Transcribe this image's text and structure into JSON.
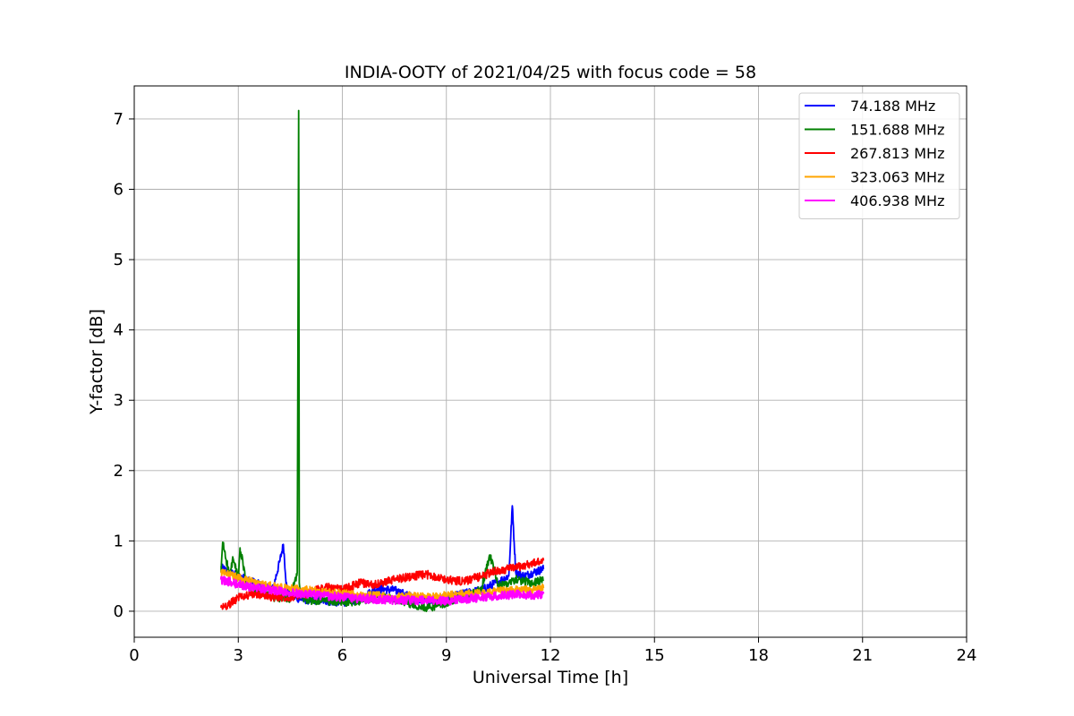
{
  "chart_data": {
    "type": "line",
    "title": "INDIA-OOTY of 2021/04/25 with focus code = 58",
    "xlabel": "Universal Time [h]",
    "ylabel": "Y-factor [dB]",
    "xlim": [
      0,
      24
    ],
    "ylim": [
      -0.37,
      7.47
    ],
    "xticks": [
      0,
      3,
      6,
      9,
      12,
      15,
      18,
      21,
      24
    ],
    "yticks": [
      0,
      1,
      2,
      3,
      4,
      5,
      6,
      7
    ],
    "grid": true,
    "legend_position": "top-right",
    "series": [
      {
        "name": " 74.188 MHz",
        "color": "#0000ff",
        "x": [
          2.5,
          2.75,
          3.0,
          3.25,
          3.5,
          3.75,
          4.0,
          4.2,
          4.3,
          4.4,
          4.5,
          4.75,
          5.0,
          5.5,
          6.0,
          6.5,
          7.0,
          7.5,
          8.0,
          8.5,
          9.0,
          9.5,
          10.0,
          10.5,
          10.8,
          10.9,
          11.0,
          11.25,
          11.5,
          11.8
        ],
        "values": [
          0.62,
          0.55,
          0.5,
          0.45,
          0.4,
          0.35,
          0.32,
          0.72,
          0.95,
          0.3,
          0.22,
          0.18,
          0.16,
          0.15,
          0.12,
          0.18,
          0.32,
          0.3,
          0.2,
          0.15,
          0.18,
          0.25,
          0.3,
          0.42,
          0.5,
          1.5,
          0.55,
          0.5,
          0.55,
          0.6
        ]
      },
      {
        "name": "151.688 MHz",
        "color": "#008000",
        "x": [
          2.5,
          2.55,
          2.75,
          2.85,
          3.0,
          3.05,
          3.25,
          3.5,
          4.0,
          4.5,
          4.7,
          4.74,
          4.76,
          4.8,
          5.0,
          5.5,
          6.0,
          6.5,
          7.0,
          7.5,
          8.0,
          8.5,
          9.0,
          9.5,
          10.0,
          10.25,
          10.5,
          11.0,
          11.5,
          11.8
        ],
        "values": [
          0.55,
          0.98,
          0.5,
          0.75,
          0.45,
          0.9,
          0.35,
          0.3,
          0.2,
          0.18,
          0.55,
          7.12,
          0.4,
          0.2,
          0.16,
          0.15,
          0.12,
          0.15,
          0.2,
          0.18,
          0.1,
          0.05,
          0.12,
          0.2,
          0.3,
          0.8,
          0.35,
          0.45,
          0.4,
          0.45
        ]
      },
      {
        "name": "267.813 MHz",
        "color": "#ff0000",
        "x": [
          2.5,
          2.75,
          3.0,
          3.5,
          4.0,
          4.5,
          5.0,
          5.5,
          6.0,
          6.5,
          7.0,
          7.5,
          8.0,
          8.5,
          9.0,
          9.5,
          10.0,
          10.5,
          11.0,
          11.5,
          11.8
        ],
        "values": [
          0.05,
          0.1,
          0.2,
          0.25,
          0.2,
          0.2,
          0.25,
          0.35,
          0.3,
          0.4,
          0.38,
          0.45,
          0.5,
          0.52,
          0.45,
          0.42,
          0.5,
          0.58,
          0.62,
          0.68,
          0.72
        ]
      },
      {
        "name": "323.063 MHz",
        "color": "#ffa500",
        "x": [
          2.5,
          3.0,
          3.5,
          4.0,
          4.5,
          5.0,
          5.5,
          6.0,
          6.5,
          7.0,
          7.5,
          8.0,
          8.5,
          9.0,
          9.5,
          10.0,
          10.5,
          11.0,
          11.5,
          11.8
        ],
        "values": [
          0.55,
          0.48,
          0.4,
          0.35,
          0.32,
          0.3,
          0.27,
          0.25,
          0.22,
          0.22,
          0.2,
          0.22,
          0.2,
          0.22,
          0.25,
          0.25,
          0.28,
          0.3,
          0.3,
          0.33
        ]
      },
      {
        "name": "406.938 MHz",
        "color": "#ff00ff",
        "x": [
          2.5,
          3.0,
          3.5,
          4.0,
          4.5,
          5.0,
          5.5,
          6.0,
          6.5,
          7.0,
          7.5,
          8.0,
          8.5,
          9.0,
          9.5,
          10.0,
          10.5,
          11.0,
          11.5,
          11.8
        ],
        "values": [
          0.45,
          0.38,
          0.33,
          0.3,
          0.27,
          0.24,
          0.22,
          0.2,
          0.18,
          0.17,
          0.16,
          0.16,
          0.15,
          0.15,
          0.17,
          0.2,
          0.22,
          0.24,
          0.23,
          0.25
        ]
      }
    ]
  }
}
